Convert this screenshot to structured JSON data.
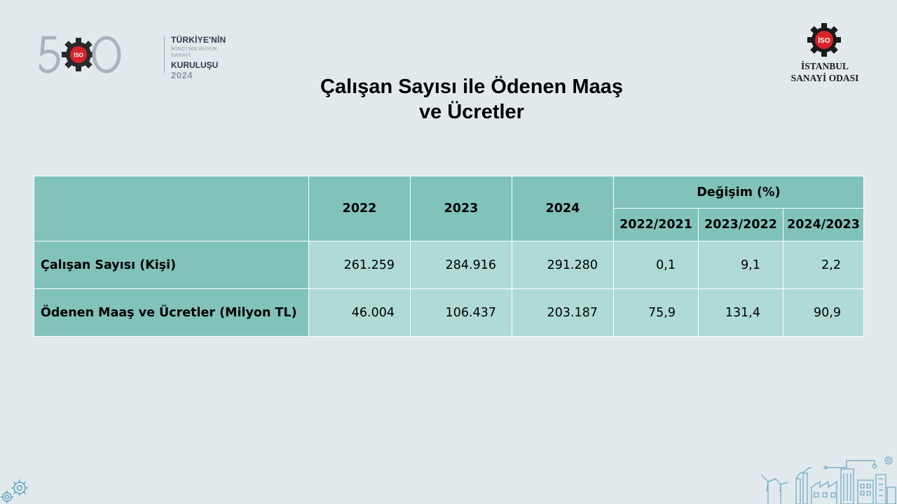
{
  "header": {
    "left_logo": {
      "number": "500",
      "line1": "TÜRKİYE'NİN",
      "line2": "İKİNCİ 500 BÜYÜK SANAYİ",
      "line3": "KURULUŞU",
      "line4": "2024",
      "badge": "İSO"
    },
    "right_logo": {
      "badge": "İSO",
      "name_line1": "İSTANBUL",
      "name_line2": "SANAYİ ODASI"
    }
  },
  "title": {
    "line1": "Çalışan Sayısı ile Ödenen Maaş",
    "line2": "ve Ücretler"
  },
  "table": {
    "year_headers": [
      "2022",
      "2023",
      "2024"
    ],
    "change_header": "Değişim (%)",
    "change_subheaders": [
      "2022/2021",
      "2023/2022",
      "2024/2023"
    ],
    "rows": [
      {
        "label": "Çalışan Sayısı (Kişi)",
        "values": [
          "261.259",
          "284.916",
          "291.280"
        ],
        "changes": [
          "0,1",
          "9,1",
          "2,2"
        ]
      },
      {
        "label": "Ödenen Maaş ve Ücretler (Milyon TL)",
        "values": [
          "46.004",
          "106.437",
          "203.187"
        ],
        "changes": [
          "75,9",
          "131,4",
          "90,9"
        ]
      }
    ]
  },
  "colors": {
    "background": "#e2e9ec",
    "header_teal": "#81c3b9",
    "cell_teal": "#b0dad4",
    "brand_red": "#d8232a",
    "brand_dark": "#1a1a1a"
  },
  "icons": {
    "left_logo": "iso-gear-icon",
    "right_logo": "iso-gear-icon",
    "bottom_left": "gears-icon",
    "bottom_right": "industry-city-icon"
  }
}
